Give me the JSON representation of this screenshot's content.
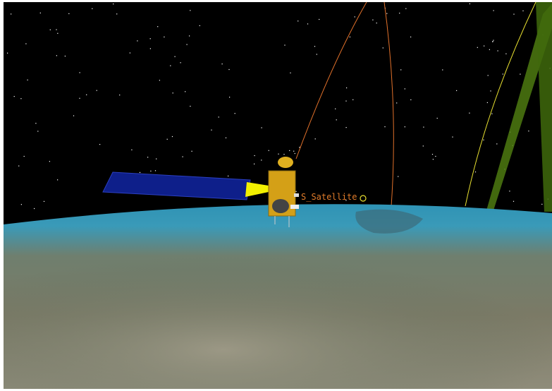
{
  "label": "S_Satellite"
}
